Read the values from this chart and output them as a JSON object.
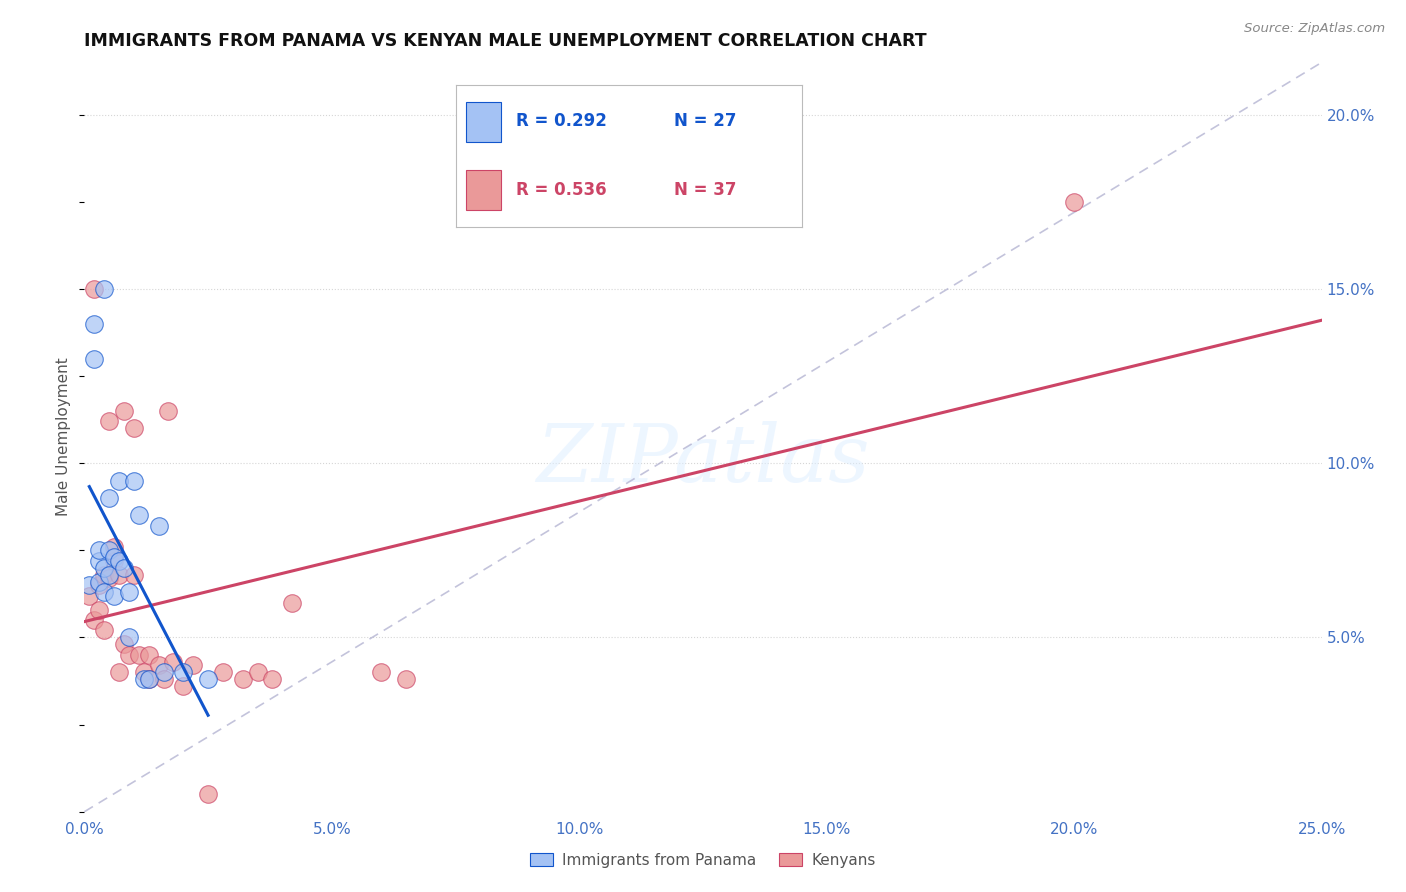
{
  "title": "IMMIGRANTS FROM PANAMA VS KENYAN MALE UNEMPLOYMENT CORRELATION CHART",
  "source": "Source: ZipAtlas.com",
  "ylabel": "Male Unemployment",
  "xlim": [
    0.0,
    0.25
  ],
  "ylim": [
    0.0,
    0.215
  ],
  "xticks": [
    0.0,
    0.05,
    0.1,
    0.15,
    0.2,
    0.25
  ],
  "xticklabels": [
    "0.0%",
    "5.0%",
    "10.0%",
    "15.0%",
    "20.0%",
    "25.0%"
  ],
  "ytick_right_labels": [
    "20.0%",
    "15.0%",
    "10.0%",
    "5.0%"
  ],
  "ytick_right_values": [
    0.2,
    0.15,
    0.1,
    0.05
  ],
  "legend_label1": "Immigrants from Panama",
  "legend_label2": "Kenyans",
  "blue_color": "#a4c2f4",
  "pink_color": "#ea9999",
  "blue_line_color": "#1155cc",
  "pink_line_color": "#cc4466",
  "blue_r": "R = 0.292",
  "blue_n": "N = 27",
  "pink_r": "R = 0.536",
  "pink_n": "N = 37",
  "watermark": "ZIPatlas",
  "blue_x": [
    0.001,
    0.002,
    0.002,
    0.003,
    0.003,
    0.003,
    0.004,
    0.004,
    0.004,
    0.005,
    0.005,
    0.005,
    0.006,
    0.006,
    0.007,
    0.007,
    0.008,
    0.009,
    0.009,
    0.01,
    0.011,
    0.012,
    0.013,
    0.015,
    0.016,
    0.02,
    0.025
  ],
  "blue_y": [
    0.065,
    0.13,
    0.14,
    0.066,
    0.072,
    0.075,
    0.063,
    0.07,
    0.15,
    0.068,
    0.075,
    0.09,
    0.062,
    0.073,
    0.095,
    0.072,
    0.07,
    0.063,
    0.05,
    0.095,
    0.085,
    0.038,
    0.038,
    0.082,
    0.04,
    0.04,
    0.038
  ],
  "pink_x": [
    0.001,
    0.002,
    0.002,
    0.003,
    0.003,
    0.004,
    0.004,
    0.005,
    0.005,
    0.006,
    0.006,
    0.007,
    0.007,
    0.008,
    0.008,
    0.009,
    0.01,
    0.01,
    0.011,
    0.012,
    0.013,
    0.013,
    0.015,
    0.016,
    0.017,
    0.018,
    0.02,
    0.022,
    0.025,
    0.028,
    0.032,
    0.035,
    0.038,
    0.042,
    0.06,
    0.065,
    0.2
  ],
  "pink_y": [
    0.062,
    0.055,
    0.15,
    0.058,
    0.065,
    0.052,
    0.068,
    0.067,
    0.112,
    0.072,
    0.076,
    0.04,
    0.068,
    0.048,
    0.115,
    0.045,
    0.068,
    0.11,
    0.045,
    0.04,
    0.038,
    0.045,
    0.042,
    0.038,
    0.115,
    0.043,
    0.036,
    0.042,
    0.005,
    0.04,
    0.038,
    0.04,
    0.038,
    0.06,
    0.04,
    0.038,
    0.175
  ],
  "grid_color": "#cccccc",
  "grid_alpha": 0.8
}
